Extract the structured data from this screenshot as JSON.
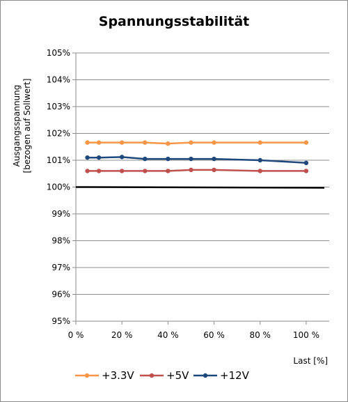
{
  "chart_data": {
    "type": "line",
    "title": "Spannungsstabilität",
    "ylabel": [
      "Ausgangsspannung",
      "[bezogen auf Sollwert]"
    ],
    "xlabel": "Last [%]",
    "xlim": [
      0,
      110
    ],
    "ylim": [
      95,
      105
    ],
    "xticks": [
      0,
      20,
      40,
      60,
      80,
      100
    ],
    "xtick_labels": [
      "0 %",
      "20 %",
      "40 %",
      "60 %",
      "80 %",
      "100 %"
    ],
    "yticks": [
      95,
      96,
      97,
      98,
      99,
      100,
      101,
      102,
      103,
      104,
      105
    ],
    "ytick_labels": [
      "95%",
      "96%",
      "97%",
      "98%",
      "99%",
      "100%",
      "101%",
      "102%",
      "103%",
      "104%",
      "105%"
    ],
    "grid": "horizontal",
    "legend": "bottom",
    "reference_line": {
      "y": 100,
      "color": "#000000"
    },
    "series": [
      {
        "name": "+3.3V",
        "color": "#f79646",
        "x": [
          5,
          10,
          20,
          30,
          40,
          50,
          60,
          80,
          100
        ],
        "y": [
          101.66,
          101.66,
          101.66,
          101.66,
          101.62,
          101.66,
          101.66,
          101.66,
          101.66
        ]
      },
      {
        "name": "+5V",
        "color": "#c0504d",
        "x": [
          5,
          10,
          20,
          30,
          40,
          50,
          60,
          80,
          100
        ],
        "y": [
          100.6,
          100.6,
          100.6,
          100.6,
          100.6,
          100.64,
          100.64,
          100.6,
          100.6
        ]
      },
      {
        "name": "+12V",
        "color": "#1f497d",
        "x": [
          5,
          10,
          20,
          30,
          40,
          50,
          60,
          80,
          100
        ],
        "y": [
          101.1,
          101.1,
          101.12,
          101.05,
          101.05,
          101.05,
          101.05,
          101.0,
          100.9
        ]
      }
    ]
  }
}
